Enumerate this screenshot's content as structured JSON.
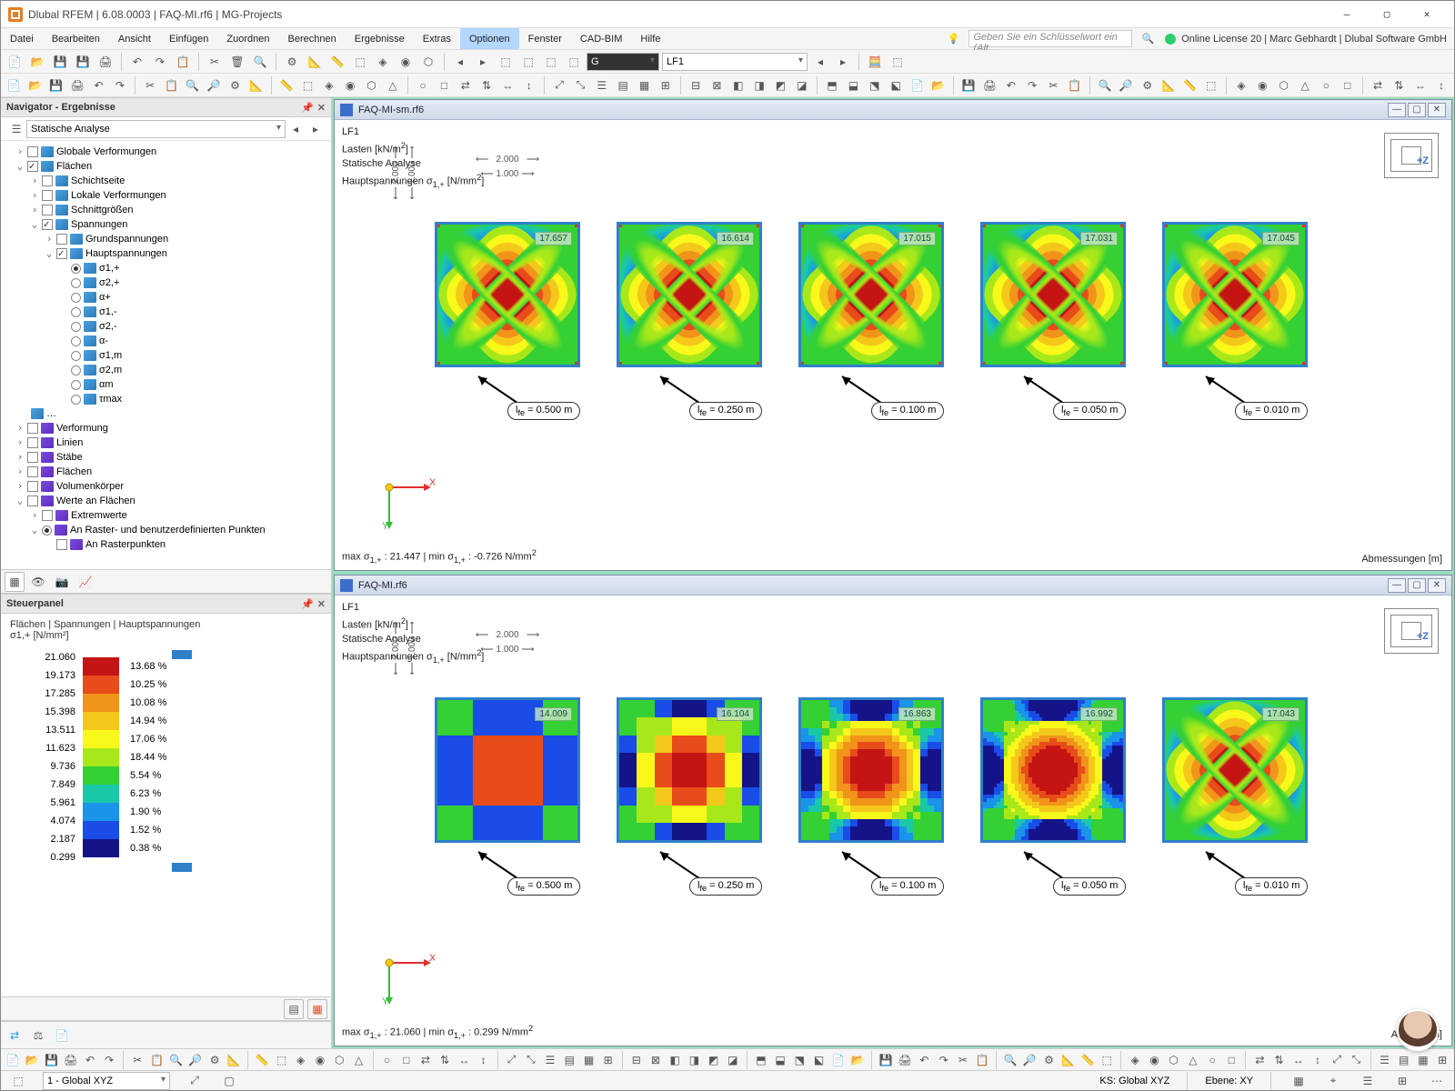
{
  "window": {
    "title": "Dlubal RFEM | 6.08.0003 | FAQ-MI.rf6 | MG-Projects",
    "searchPlaceholder": "Geben Sie ein Schlüsselwort ein (Alt…",
    "license": "Online License 20 | Marc Gebhardt | Dlubal Software GmbH"
  },
  "menu": {
    "items": [
      "Datei",
      "Bearbeiten",
      "Ansicht",
      "Einfügen",
      "Zuordnen",
      "Berechnen",
      "Ergebnisse",
      "Extras",
      "Optionen",
      "Fenster",
      "CAD-BIM",
      "Hilfe"
    ],
    "selectedIndex": 8
  },
  "toolbar1": {
    "comboG": "G",
    "comboLF": "LF1"
  },
  "navigator": {
    "title": "Navigator - Ergebnisse",
    "combo": "Statische Analyse",
    "tree": {
      "globVerf": "Globale Verformungen",
      "flaechen": "Flächen",
      "schichtseite": "Schichtseite",
      "lokVerf": "Lokale Verformungen",
      "schnitt": "Schnittgrößen",
      "spannungen": "Spannungen",
      "grund": "Grundspannungen",
      "haupt": "Hauptspannungen",
      "sigma_items": [
        "σ1,+",
        "σ2,+",
        "α+",
        "σ1,-",
        "σ2,-",
        "α-",
        "σ1,m",
        "σ2,m",
        "αm",
        "τmax"
      ],
      "verformung": "Verformung",
      "linien": "Linien",
      "staebe": "Stäbe",
      "flaechen2": "Flächen",
      "volumen": "Volumenkörper",
      "werte": "Werte an Flächen",
      "extrem": "Extremwerte",
      "raster": "An Raster- und benutzerdefinierten Punkten",
      "rasterpkt": "An Rasterpunkten"
    }
  },
  "steuerpanel": {
    "title": "Steuerpanel",
    "subtitle": "Flächen | Spannungen | Hauptspannungen",
    "unitline": "σ1,+ [N/mm²]",
    "legend": {
      "values": [
        "21.060",
        "19.173",
        "17.285",
        "15.398",
        "13.511",
        "11.623",
        "9.736",
        "7.849",
        "5.961",
        "4.074",
        "2.187",
        "0.299"
      ],
      "colors": [
        "#c41414",
        "#e84c1a",
        "#f0941a",
        "#f4c81a",
        "#f8f81a",
        "#a8e81a",
        "#34d034",
        "#1ac8a8",
        "#1a94e8",
        "#1a4ce8",
        "#141488"
      ],
      "percents": [
        "13.68 %",
        "10.25 %",
        "10.08 %",
        "14.94 %",
        "17.06 %",
        "18.44 %",
        "5.54 %",
        "6.23 %",
        "1.90 %",
        "1.52 %",
        "0.38 %"
      ]
    }
  },
  "views": [
    {
      "file": "FAQ-MI-sm.rf6",
      "info": [
        "LF1",
        "Lasten [kN/m²]",
        "Statische Analyse",
        "Hauptspannungen σ1,+ [N/mm²]"
      ],
      "maxmin": "max σ1,+ : 21.447 | min σ1,+ : -0.726 N/mm²",
      "abm": "Abmessungen [m]",
      "style": "smooth",
      "dims": {
        "outer": "2.000",
        "inner": "1.000",
        "side": "2.000",
        "sideInner": "1.000"
      },
      "plates": [
        {
          "val": "17.657",
          "lfe": "lfe = 0.500 m"
        },
        {
          "val": "16.614",
          "lfe": "lfe = 0.250 m"
        },
        {
          "val": "17.015",
          "lfe": "lfe = 0.100 m"
        },
        {
          "val": "17.031",
          "lfe": "lfe = 0.050 m"
        },
        {
          "val": "17.045",
          "lfe": "lfe = 0.010 m"
        }
      ]
    },
    {
      "file": "FAQ-MI.rf6",
      "info": [
        "LF1",
        "Lasten [kN/m²]",
        "Statische Analyse",
        "Hauptspannungen σ1,+ [N/mm²]"
      ],
      "maxmin": "max σ1,+ : 21.060 | min σ1,+ : 0.299 N/mm²",
      "abm": "Abme            n [m]",
      "style": "pixel",
      "dims": {
        "outer": "2.000",
        "inner": "1.000",
        "side": "2.000",
        "sideInner": "1.000"
      },
      "plates": [
        {
          "val": "14.009",
          "lfe": "lfe = 0.500 m",
          "n": 4
        },
        {
          "val": "16.104",
          "lfe": "lfe = 0.250 m",
          "n": 8
        },
        {
          "val": "16.863",
          "lfe": "lfe = 0.100 m",
          "n": 20
        },
        {
          "val": "16.992",
          "lfe": "lfe = 0.050 m",
          "n": 40
        },
        {
          "val": "17.043",
          "lfe": "lfe = 0.010 m",
          "n": 80
        }
      ]
    }
  ],
  "statusbar": {
    "ks": "KS: Global XYZ",
    "ebene": "Ebene: XY",
    "viewCombo": "1 - Global XYZ"
  },
  "palette": {
    "c0": "#141488",
    "c1": "#1a4ce8",
    "c2": "#1a94e8",
    "c3": "#1ac8a8",
    "c4": "#34d034",
    "c5": "#a8e81a",
    "c6": "#f8f81a",
    "c7": "#f4c81a",
    "c8": "#f0941a",
    "c9": "#e84c1a",
    "c10": "#c41414"
  }
}
